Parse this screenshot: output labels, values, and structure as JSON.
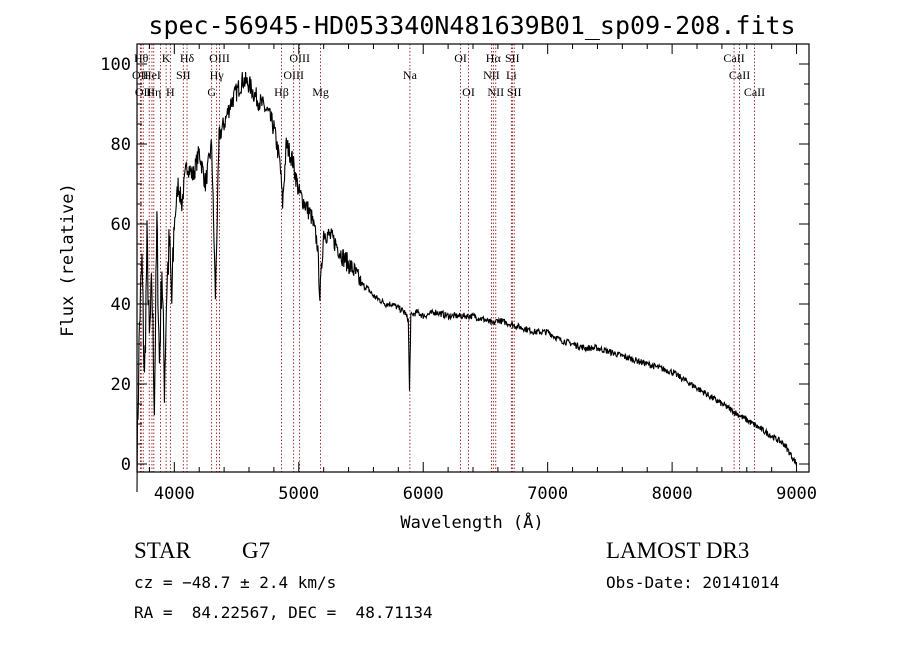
{
  "chart_data": {
    "type": "line",
    "title": "spec-56945-HD053340N481639B01_sp09-208.fits",
    "xlabel": "Wavelength (Å)",
    "ylabel": "Flux (relative)",
    "xlim": [
      3700,
      9100
    ],
    "ylim": [
      -2,
      105
    ],
    "xticks": [
      4000,
      5000,
      6000,
      7000,
      8000,
      9000
    ],
    "yticks": [
      0,
      20,
      40,
      60,
      80,
      100
    ],
    "grid": false,
    "line_color": "#000000",
    "marker_color": "#8b0000",
    "series": [
      {
        "x": [
          3700,
          3720,
          3740,
          3760,
          3780,
          3800,
          3820,
          3840,
          3860,
          3880,
          3900,
          3920,
          3940,
          3960,
          3980,
          4000,
          4030,
          4060,
          4100,
          4150,
          4200,
          4250,
          4300,
          4330,
          4360,
          4400,
          4450,
          4500,
          4550,
          4600,
          4650,
          4700,
          4750,
          4800,
          4850,
          4870,
          4900,
          4950,
          5000,
          5050,
          5100,
          5150,
          5170,
          5200,
          5250,
          5300,
          5350,
          5400,
          5450,
          5500,
          5550,
          5600,
          5650,
          5700,
          5750,
          5800,
          5850,
          5880,
          5890,
          5900,
          5950,
          6000,
          6100,
          6200,
          6300,
          6400,
          6500,
          6560,
          6600,
          6700,
          6800,
          6900,
          7000,
          7100,
          7200,
          7300,
          7400,
          7500,
          7600,
          7700,
          7800,
          7900,
          8000,
          8100,
          8200,
          8300,
          8400,
          8500,
          8600,
          8700,
          8800,
          8900,
          8960,
          9000
        ],
        "values": [
          0,
          35,
          50,
          20,
          55,
          30,
          45,
          15,
          60,
          25,
          50,
          20,
          45,
          55,
          40,
          60,
          70,
          65,
          75,
          72,
          78,
          70,
          80,
          42,
          82,
          85,
          90,
          93,
          96,
          95,
          92,
          90,
          88,
          84,
          75,
          65,
          80,
          76,
          68,
          65,
          62,
          55,
          42,
          58,
          57,
          55,
          52,
          50,
          48,
          45,
          44,
          42,
          41,
          40,
          40,
          39,
          38,
          36,
          18,
          37,
          38,
          37,
          38,
          37,
          37,
          37,
          36,
          35,
          36,
          35,
          34,
          33,
          33,
          31,
          30,
          29,
          29,
          28,
          27,
          26,
          25,
          24,
          23,
          21,
          19,
          17,
          15,
          13,
          11,
          9,
          7,
          5,
          2,
          0
        ]
      }
    ],
    "lines": [
      {
        "x": 3734,
        "label": "Hθ",
        "row": 1
      },
      {
        "x": 3727,
        "label": "OII",
        "row": 2
      },
      {
        "x": 3750,
        "label": "OII",
        "row": 3
      },
      {
        "x": 3798,
        "label": "",
        "row": 0
      },
      {
        "x": 3820,
        "label": "HeI",
        "row": 2
      },
      {
        "x": 3835,
        "label": "Hη",
        "row": 3
      },
      {
        "x": 3889,
        "label": "",
        "row": 0
      },
      {
        "x": 3934,
        "label": "K",
        "row": 1
      },
      {
        "x": 3968,
        "label": "H",
        "row": 3
      },
      {
        "x": 4072,
        "label": "SII",
        "row": 2
      },
      {
        "x": 4102,
        "label": "Hδ",
        "row": 1
      },
      {
        "x": 4300,
        "label": "G",
        "row": 3
      },
      {
        "x": 4340,
        "label": "Hγ",
        "row": 2
      },
      {
        "x": 4363,
        "label": "OIII",
        "row": 1
      },
      {
        "x": 4861,
        "label": "Hβ",
        "row": 3
      },
      {
        "x": 4959,
        "label": "OIII",
        "row": 2
      },
      {
        "x": 5007,
        "label": "OIII",
        "row": 1
      },
      {
        "x": 5175,
        "label": "Mg",
        "row": 3
      },
      {
        "x": 5893,
        "label": "Na",
        "row": 2
      },
      {
        "x": 6300,
        "label": "OI",
        "row": 1
      },
      {
        "x": 6364,
        "label": "OI",
        "row": 3
      },
      {
        "x": 6548,
        "label": "NII",
        "row": 2
      },
      {
        "x": 6563,
        "label": "Hα",
        "row": 1
      },
      {
        "x": 6583,
        "label": "NII",
        "row": 3
      },
      {
        "x": 6708,
        "label": "Li",
        "row": 2
      },
      {
        "x": 6716,
        "label": "SII",
        "row": 1
      },
      {
        "x": 6731,
        "label": "SII",
        "row": 3
      },
      {
        "x": 8498,
        "label": "CaII",
        "row": 1
      },
      {
        "x": 8542,
        "label": "CaII",
        "row": 2
      },
      {
        "x": 8662,
        "label": "CaII",
        "row": 3
      }
    ]
  },
  "info": {
    "object_class": "STAR",
    "subclass": "G7",
    "survey": "LAMOST DR3",
    "cz": "cz = −48.7 ± 2.4 km/s",
    "obs_date": "Obs-Date: 20141014",
    "coords": "RA =  84.22567, DEC =  48.71134"
  }
}
